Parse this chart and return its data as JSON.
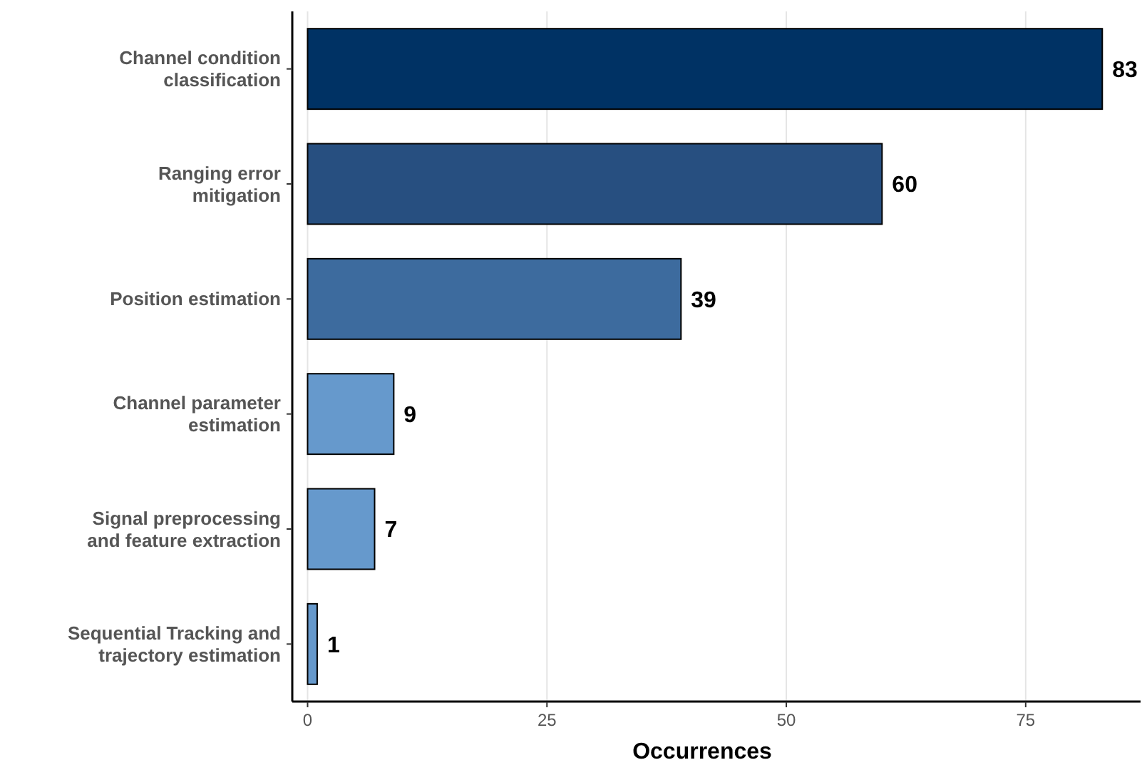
{
  "chart_data": {
    "type": "bar",
    "orientation": "horizontal",
    "xlabel": "Occurrences",
    "categories": [
      "Channel condition\nclassification",
      "Ranging error\nmitigation",
      "Position estimation",
      "Channel parameter\nestimation",
      "Signal preprocessing\nand feature extraction",
      "Sequential Tracking and\ntrajectory estimation"
    ],
    "values": [
      83,
      60,
      39,
      9,
      7,
      1
    ],
    "colors": [
      "#003264",
      "#274f80",
      "#3d6b9e",
      "#6699cc",
      "#6699cc",
      "#6699cc"
    ],
    "xlim": [
      -1.6,
      87
    ],
    "xticks": [
      0,
      25,
      50,
      75
    ],
    "grid": "x",
    "data_labels": true
  }
}
